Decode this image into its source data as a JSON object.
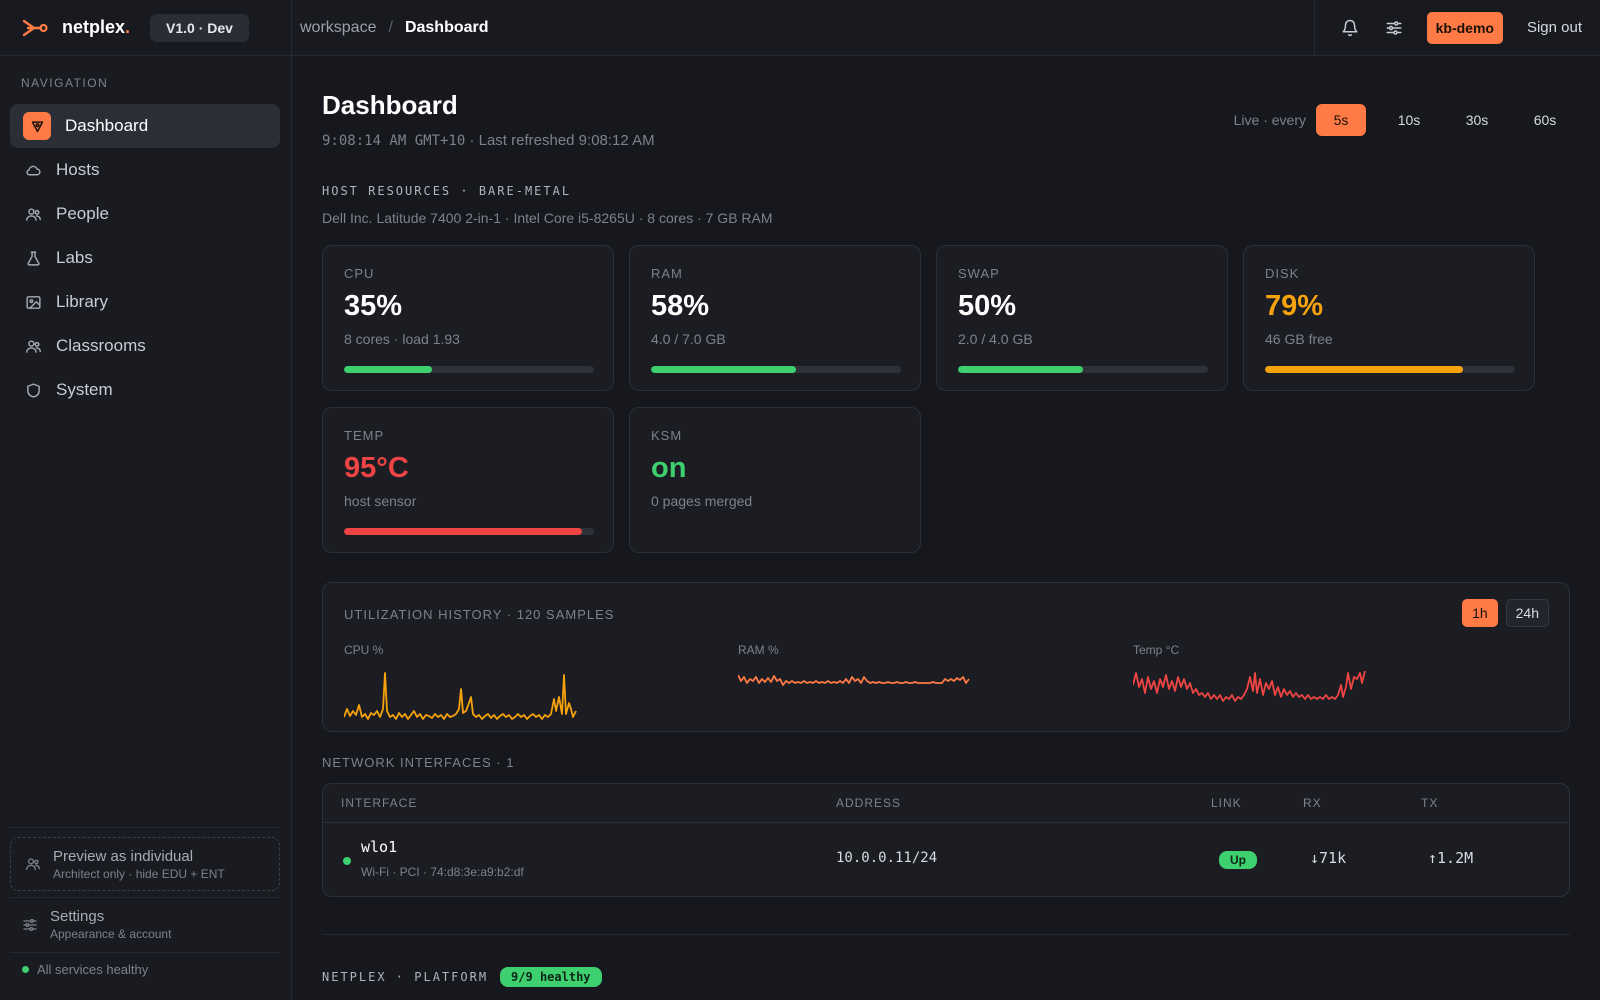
{
  "header": {
    "brand": "netplex",
    "brand_dot": ".",
    "version": "V1.0 · Dev",
    "breadcrumb_root": "workspace",
    "breadcrumb_sep": "/",
    "breadcrumb_current": "Dashboard",
    "user": "kb-demo",
    "sign_out": "Sign out",
    "icons": [
      "bell-icon",
      "sliders-icon"
    ]
  },
  "sidebar": {
    "heading": "NAVIGATION",
    "items": [
      {
        "label": "Dashboard",
        "icon": "dashboard-icon",
        "active": true
      },
      {
        "label": "Hosts",
        "icon": "cloud-icon"
      },
      {
        "label": "People",
        "icon": "people-icon"
      },
      {
        "label": "Labs",
        "icon": "flask-icon"
      },
      {
        "label": "Library",
        "icon": "image-icon"
      },
      {
        "label": "Classrooms",
        "icon": "people-icon"
      },
      {
        "label": "System",
        "icon": "shield-icon"
      }
    ],
    "preview": {
      "title": "Preview as individual",
      "subtitle": "Architect only · hide EDU + ENT"
    },
    "settings": {
      "title": "Settings",
      "subtitle": "Appearance & account"
    },
    "health": "All services healthy"
  },
  "main": {
    "title": "Dashboard",
    "clock": "9:08:14 AM GMT+10",
    "refreshed": " · Last refreshed 9:08:12 AM",
    "live_label": "Live · every",
    "intervals": [
      "5s",
      "10s",
      "30s",
      "60s"
    ],
    "active_interval": "5s",
    "host_section": "HOST RESOURCES · BARE-METAL",
    "host_desc": "Dell Inc. Latitude 7400 2-in-1 · Intel Core i5-8265U · 8 cores · 7 GB RAM",
    "cards": [
      {
        "label": "CPU",
        "value": "35%",
        "sub": "8 cores · load 1.93",
        "percent": 35,
        "color": "#3ecf6e",
        "value_color": "#ffffff"
      },
      {
        "label": "RAM",
        "value": "58%",
        "sub": "4.0 / 7.0 GB",
        "percent": 58,
        "color": "#3ecf6e",
        "value_color": "#ffffff"
      },
      {
        "label": "SWAP",
        "value": "50%",
        "sub": "2.0 / 4.0 GB",
        "percent": 50,
        "color": "#3ecf6e",
        "value_color": "#ffffff"
      },
      {
        "label": "DISK",
        "value": "79%",
        "sub": "46 GB free",
        "percent": 79,
        "color": "#f5a20c",
        "value_color": "#f5a20c"
      },
      {
        "label": "TEMP",
        "value": "95°C",
        "sub": "host sensor",
        "percent": 95,
        "color": "#ef4444",
        "value_color": "#ef4444"
      },
      {
        "label": "KSM",
        "value": "on",
        "sub": "0 pages merged",
        "value_color": "#3ecf6e"
      }
    ],
    "history": {
      "title": "UTILIZATION HISTORY · 120 SAMPLES",
      "ranges": [
        "1h",
        "24h"
      ],
      "active_range": "1h",
      "sparklines": [
        {
          "label": "CPU %",
          "color": "#f5a20c"
        },
        {
          "label": "RAM %",
          "color": "#ff7a45"
        },
        {
          "label": "Temp °C",
          "color": "#ef4444"
        }
      ]
    },
    "network": {
      "title": "NETWORK INTERFACES · 1",
      "headers": [
        "INTERFACE",
        "ADDRESS",
        "LINK",
        "RX",
        "TX"
      ],
      "rows": [
        {
          "name": "wlo1",
          "detail": "Wi-Fi · PCI · 74:d8:3e:a9:b2:df",
          "address": "10.0.0.11/24",
          "link": "Up",
          "rx": "↓71k",
          "tx": "↑1.2M"
        }
      ]
    },
    "platform": {
      "label": "NETPLEX · PLATFORM",
      "badge": "9/9 healthy"
    }
  }
}
